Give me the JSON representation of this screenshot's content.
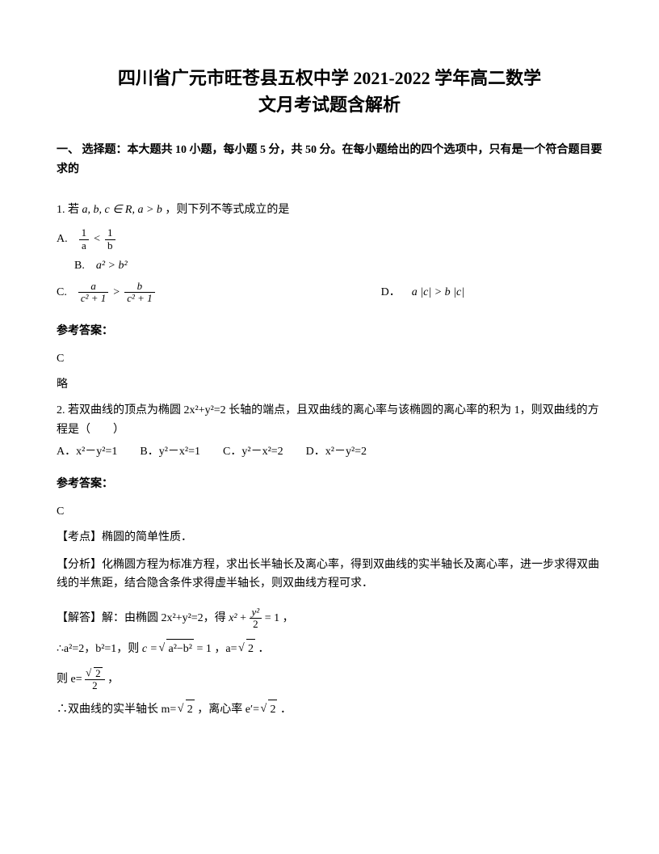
{
  "title_line1": "四川省广元市旺苍县五权中学 2021-2022 学年高二数学",
  "title_line2": "文月考试题含解析",
  "section1_header": "一、 选择题：本大题共 10 小题，每小题 5 分，共 50 分。在每小题给出的四个选项中，只有是一个符合题目要求的",
  "q1": {
    "stem_prefix": "1. 若",
    "stem_cond": "a, b, c ∈ R, a > b",
    "stem_suffix": "，则下列不等式成立的是",
    "optA_label": "A.",
    "optB_label": "B.",
    "optB_text": "a² > b²",
    "optC_label": "C.",
    "optD_label": "D．",
    "optD_text": "a |c| > b |c|",
    "frac1_num": "1",
    "frac1_den": "a",
    "frac2_num": "1",
    "frac2_den": "b",
    "lt": "<",
    "gt": ">",
    "fracC1_num": "a",
    "fracC1_den": "c² + 1",
    "fracC2_num": "b",
    "fracC2_den": "c² + 1"
  },
  "answer_label": "参考答案：",
  "q1_answer": "C",
  "q1_brief": "略",
  "q2": {
    "stem": "2. 若双曲线的顶点为椭圆 2x²+y²=2 长轴的端点，且双曲线的离心率与该椭圆的离心率的积为 1，则双曲线的方程是（　　）",
    "opts": "A．x²－y²=1　　B．y²－x²=1　　C．y²－x²=2　　D．x²－y²=2",
    "answer": "C",
    "topic": "【考点】椭圆的简单性质．",
    "analysis": "【分析】化椭圆方程为标准方程，求出长半轴长及离心率，得到双曲线的实半轴长及离心率，进一步求得双曲线的半焦距，结合隐含条件求得虚半轴长，则双曲线方程可求．",
    "solve_prefix": "【解答】解：由椭圆 2x²+y²=2，得",
    "solve_eq_x": "x²",
    "solve_plus": "+",
    "solve_frac_num": "y²",
    "solve_frac_den": "2",
    "solve_eq1": "= 1",
    "solve_comma": "，",
    "line2_prefix": "∴a²=2，b²=1，则",
    "line2_c": "c =",
    "line2_sqrt_inner": "a²−b²",
    "line2_eq1": "= 1",
    "line2_a": "，a=",
    "line2_sqrt2": "2",
    "line2_period": "．",
    "line3_prefix": "则 e=",
    "line3_sqrt2": "2",
    "line3_den": "2",
    "line3_comma": "，",
    "line4_prefix": "∴双曲线的实半轴长 m=",
    "line4_sqrt2a": "2",
    "line4_mid": "，离心率 e′=",
    "line4_sqrt2b": "2",
    "line4_period": "．"
  }
}
